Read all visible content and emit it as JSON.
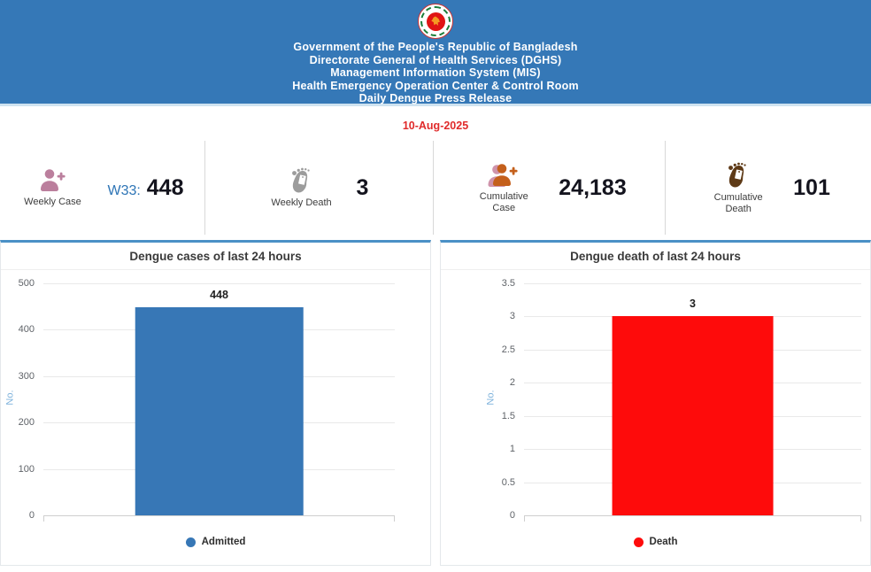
{
  "colors": {
    "header_bg": "#3578b7",
    "header_text": "#ffffff",
    "date_text": "#e02b2b",
    "week_prefix": "#2e75b6",
    "stat_value": "#14141e",
    "card_accent_border": "#4b90c6",
    "gridline": "#e9e9e9",
    "tick_text": "#5f6368",
    "y_axis_title_text": "#7fb3dc",
    "bar_blue": "#3777b6",
    "bar_red": "#fe0b0b",
    "icon_weekly_case": "#bb7f9d",
    "icon_weekly_death": "#9c9c9c",
    "icon_cumulative_case": "#c4601c",
    "icon_cumulative_death": "#5e3a17"
  },
  "header": {
    "logo": "bangladesh-government-emblem",
    "lines": [
      "Government of the People's Republic of Bangladesh",
      "Directorate General of Health Services (DGHS)",
      "Management Information System (MIS)",
      "Health Emergency Operation Center & Control Room",
      "Daily Dengue Press Release"
    ]
  },
  "date": "10-Aug-2025",
  "stats": [
    {
      "icon": "person-add-icon",
      "label": "Weekly Case",
      "prefix": "W33:",
      "value": "448"
    },
    {
      "icon": "foot-tag-icon",
      "label": "Weekly Death",
      "prefix": "",
      "value": "3"
    },
    {
      "icon": "person-add-double-icon",
      "label": "Cumulative Case",
      "prefix": "",
      "value": "24,183"
    },
    {
      "icon": "foot-tag-icon",
      "label": "Cumulative Death",
      "prefix": "",
      "value": "101"
    }
  ],
  "chart_data": [
    {
      "type": "bar",
      "title": "Dengue cases of last 24 hours",
      "xlabel": "",
      "ylabel": "No.",
      "categories": [
        "Admitted"
      ],
      "values": [
        448
      ],
      "bar_labels": [
        "448"
      ],
      "bar_colors": [
        "#3777b6"
      ],
      "yticks": [
        500,
        400,
        300,
        200,
        100,
        0
      ],
      "ylim": [
        0,
        500
      ],
      "grid": true,
      "legend": [
        {
          "label": "Admitted",
          "color": "#3777b6"
        }
      ],
      "legend_position": "bottom"
    },
    {
      "type": "bar",
      "title": "Dengue death of last 24 hours",
      "xlabel": "",
      "ylabel": "No.",
      "categories": [
        "Death"
      ],
      "values": [
        3
      ],
      "bar_labels": [
        "3"
      ],
      "bar_colors": [
        "#fe0b0b"
      ],
      "yticks": [
        3.5,
        3,
        2.5,
        2,
        1.5,
        1,
        0.5,
        0
      ],
      "ylim": [
        0,
        3.5
      ],
      "grid": true,
      "legend": [
        {
          "label": "Death",
          "color": "#fe0b0b"
        }
      ],
      "legend_position": "bottom"
    }
  ]
}
